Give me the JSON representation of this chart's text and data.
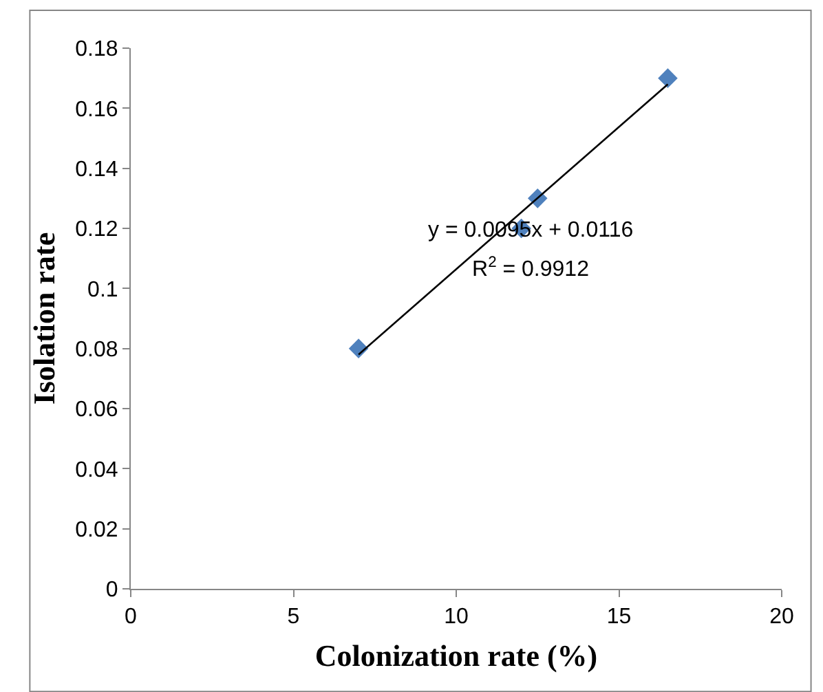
{
  "chart_data": {
    "type": "scatter",
    "xlabel": "Colonization rate (%)",
    "ylabel": "Isolation rate",
    "series": [
      {
        "color": "#4f81bd",
        "x": [
          7,
          12,
          12.5,
          16.5
        ],
        "values": [
          0.08,
          0.12,
          0.13,
          0.17
        ],
        "marker": "diamond"
      },
      {
        "type": "line",
        "color": "#000000",
        "x": [
          7,
          16.5
        ],
        "values": [
          0.078,
          0.168
        ],
        "marker": "none",
        "line_style": "solid"
      }
    ],
    "annotations": [
      "y = 0.0095x + 0.0116",
      "R$^{2}$ = 0.9912"
    ],
    "xlim": [
      0,
      20
    ],
    "xticks": [
      0,
      5,
      10,
      15,
      20
    ],
    "ylim": [
      0,
      0.18
    ],
    "yticks": [
      0,
      0.02,
      0.04,
      0.06,
      0.08,
      {
        "value": 0.1,
        "label": "0.1"
      },
      0.12,
      0.14,
      0.16,
      0.18
    ]
  }
}
